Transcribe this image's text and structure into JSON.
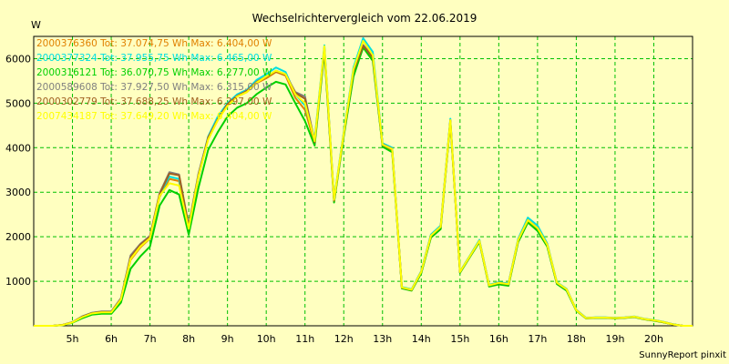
{
  "chart_data": {
    "type": "line",
    "title": "Wechselrichtervergleich vom 22.06.2019",
    "ylabel": "W",
    "footer": "SunnyReport pinxit",
    "ylim": [
      0,
      6500
    ],
    "xlim": [
      4.0,
      21.0
    ],
    "y_ticks": [
      {
        "value": 1000,
        "label": "1000"
      },
      {
        "value": 2000,
        "label": "2000"
      },
      {
        "value": 3000,
        "label": "3000"
      },
      {
        "value": 4000,
        "label": "4000"
      },
      {
        "value": 5000,
        "label": "5000"
      },
      {
        "value": 6000,
        "label": "6000"
      }
    ],
    "x_ticks": [
      {
        "value": 5,
        "label": "5h"
      },
      {
        "value": 6,
        "label": "6h"
      },
      {
        "value": 7,
        "label": "7h"
      },
      {
        "value": 8,
        "label": "8h"
      },
      {
        "value": 9,
        "label": "9h"
      },
      {
        "value": 10,
        "label": "10h"
      },
      {
        "value": 11,
        "label": "11h"
      },
      {
        "value": 12,
        "label": "12h"
      },
      {
        "value": 13,
        "label": "13h"
      },
      {
        "value": 14,
        "label": "14h"
      },
      {
        "value": 15,
        "label": "15h"
      },
      {
        "value": 16,
        "label": "16h"
      },
      {
        "value": 17,
        "label": "17h"
      },
      {
        "value": 18,
        "label": "18h"
      },
      {
        "value": 19,
        "label": "19h"
      },
      {
        "value": 20,
        "label": "20h"
      }
    ],
    "grid": true,
    "legend_position": "top-left",
    "x": [
      4.0,
      4.25,
      4.5,
      4.75,
      5.0,
      5.25,
      5.5,
      5.75,
      6.0,
      6.25,
      6.5,
      6.75,
      7.0,
      7.25,
      7.5,
      7.75,
      8.0,
      8.25,
      8.5,
      8.75,
      9.0,
      9.25,
      9.5,
      9.75,
      10.0,
      10.25,
      10.5,
      10.75,
      11.0,
      11.25,
      11.5,
      11.75,
      12.0,
      12.25,
      12.5,
      12.75,
      13.0,
      13.25,
      13.5,
      13.75,
      14.0,
      14.25,
      14.5,
      14.75,
      15.0,
      15.25,
      15.5,
      15.75,
      16.0,
      16.25,
      16.5,
      16.75,
      17.0,
      17.25,
      17.5,
      17.75,
      18.0,
      18.25,
      18.5,
      18.75,
      19.0,
      19.25,
      19.5,
      19.75,
      20.0,
      20.25,
      20.5,
      20.75,
      21.0
    ],
    "series": [
      {
        "name": "2000376360 Tot: 37.074,75 Wh Max: 6.404,00 W",
        "color": "#e08000",
        "values": [
          0,
          0,
          0,
          20,
          80,
          200,
          280,
          300,
          300,
          580,
          1480,
          1760,
          1960,
          2900,
          3300,
          3250,
          2150,
          3350,
          4200,
          4650,
          4950,
          5150,
          5250,
          5450,
          5560,
          5700,
          5620,
          5120,
          4850,
          4100,
          6200,
          2800,
          4300,
          5700,
          6250,
          6000,
          4050,
          3950,
          850,
          800,
          1200,
          2000,
          2200,
          4600,
          1200,
          1550,
          1900,
          900,
          950,
          920,
          1900,
          2350,
          2150,
          1800,
          950,
          800,
          350,
          170,
          180,
          180,
          170,
          180,
          200,
          150,
          120,
          80,
          30,
          0,
          0
        ]
      },
      {
        "name": "2000377324 Tot: 37.955,75 Wh Max: 6.465,00 W",
        "color": "#00e0e0",
        "values": [
          0,
          0,
          0,
          20,
          80,
          210,
          290,
          310,
          310,
          600,
          1520,
          1800,
          1980,
          2950,
          3350,
          3300,
          2200,
          3400,
          4250,
          4700,
          5000,
          5200,
          5300,
          5520,
          5650,
          5800,
          5700,
          5200,
          4950,
          4200,
          6300,
          2850,
          4350,
          5800,
          6460,
          6150,
          4100,
          4000,
          870,
          820,
          1230,
          2050,
          2250,
          4650,
          1220,
          1570,
          1930,
          920,
          980,
          950,
          1950,
          2430,
          2250,
          1850,
          980,
          830,
          360,
          180,
          190,
          190,
          180,
          190,
          210,
          160,
          130,
          90,
          35,
          0,
          0
        ]
      },
      {
        "name": "2000316121 Tot: 36.070,75 Wh Max: 6.277,00 W",
        "color": "#00d000",
        "values": [
          0,
          0,
          0,
          15,
          70,
          170,
          250,
          270,
          270,
          520,
          1280,
          1560,
          1780,
          2700,
          3050,
          2950,
          2050,
          3100,
          3950,
          4350,
          4700,
          4900,
          5000,
          5200,
          5350,
          5480,
          5420,
          5000,
          4600,
          4050,
          6150,
          2770,
          4250,
          5600,
          6250,
          5950,
          4020,
          3900,
          840,
          790,
          1180,
          1980,
          2170,
          4580,
          1190,
          1540,
          1880,
          880,
          930,
          900,
          1880,
          2320,
          2130,
          1780,
          940,
          790,
          340,
          165,
          175,
          175,
          165,
          175,
          195,
          145,
          115,
          75,
          30,
          0,
          0
        ]
      },
      {
        "name": "2000589608 Tot: 37.927,50 Wh Max: 6.315,00 W",
        "color": "#808080",
        "values": [
          0,
          0,
          0,
          20,
          80,
          210,
          290,
          320,
          320,
          620,
          1580,
          1840,
          2020,
          2980,
          3450,
          3400,
          2250,
          3420,
          4220,
          4620,
          4970,
          5170,
          5280,
          5480,
          5600,
          5730,
          5650,
          5250,
          5150,
          4150,
          6250,
          2820,
          4320,
          5750,
          6310,
          6050,
          4080,
          3980,
          860,
          810,
          1220,
          2030,
          2230,
          4620,
          1210,
          1560,
          1910,
          910,
          970,
          940,
          1930,
          2380,
          2200,
          1830,
          970,
          820,
          355,
          175,
          185,
          185,
          175,
          185,
          205,
          155,
          125,
          85,
          30,
          0,
          0
        ]
      },
      {
        "name": "2000302779 Tot: 37.688,25 Wh Max: 6.297,00 W",
        "color": "#a06020",
        "values": [
          0,
          0,
          0,
          20,
          80,
          205,
          285,
          310,
          310,
          600,
          1540,
          1820,
          2000,
          2960,
          3420,
          3380,
          2230,
          3380,
          4230,
          4640,
          4980,
          5160,
          5270,
          5470,
          5590,
          5720,
          5640,
          5230,
          5100,
          4120,
          6230,
          2810,
          4300,
          5720,
          6290,
          6030,
          4060,
          3960,
          855,
          805,
          1210,
          2020,
          2220,
          4610,
          1205,
          1555,
          1905,
          905,
          960,
          930,
          1920,
          2370,
          2190,
          1820,
          965,
          815,
          350,
          172,
          182,
          182,
          172,
          182,
          202,
          152,
          122,
          82,
          30,
          0,
          0
        ]
      },
      {
        "name": "2007434187 Tot: 37.649,20 Wh Max: 6.404,00 W",
        "color": "#ffff00",
        "values": [
          0,
          0,
          0,
          18,
          75,
          195,
          275,
          300,
          300,
          590,
          1500,
          1780,
          1970,
          2920,
          3200,
          3150,
          2180,
          3360,
          4180,
          4620,
          4940,
          5150,
          5250,
          5460,
          5600,
          5730,
          5650,
          5200,
          5000,
          4150,
          6280,
          2830,
          4320,
          5760,
          6400,
          6080,
          4070,
          3970,
          860,
          810,
          1215,
          2025,
          2225,
          4620,
          1210,
          1560,
          1910,
          910,
          965,
          935,
          1925,
          2375,
          2195,
          1825,
          970,
          820,
          352,
          174,
          184,
          184,
          174,
          184,
          204,
          154,
          124,
          84,
          30,
          0,
          0
        ]
      }
    ]
  }
}
